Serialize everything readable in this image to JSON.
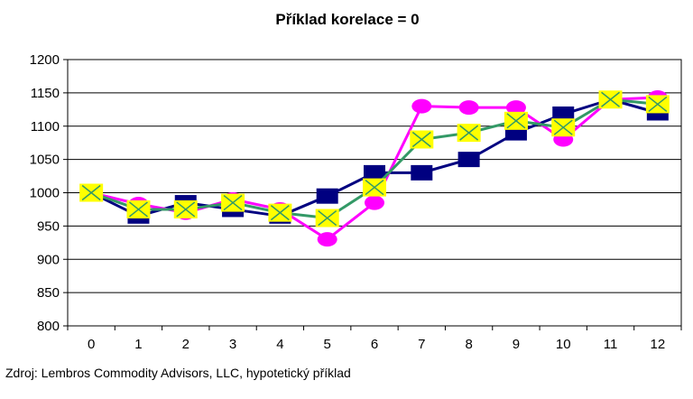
{
  "chart_data": {
    "type": "line",
    "title": "Příklad korelace = 0",
    "xlabel": "",
    "ylabel": "",
    "categories": [
      "0",
      "1",
      "2",
      "3",
      "4",
      "5",
      "6",
      "7",
      "8",
      "9",
      "10",
      "11",
      "12"
    ],
    "ylim": [
      800,
      1200
    ],
    "yticks": [
      800,
      850,
      900,
      950,
      1000,
      1050,
      1100,
      1150,
      1200
    ],
    "grid": true,
    "legend": "none",
    "series": [
      {
        "color": "#000080",
        "marker": "square",
        "values": [
          1000,
          965,
          985,
          975,
          965,
          995,
          1030,
          1030,
          1050,
          1090,
          1118,
          1140,
          1120
        ]
      },
      {
        "color": "#ff00ff",
        "marker": "circle",
        "values": [
          1000,
          983,
          970,
          990,
          975,
          930,
          985,
          1130,
          1128,
          1128,
          1080,
          1140,
          1143
        ]
      },
      {
        "color": "#339966",
        "marker": "x-square",
        "marker_fill": "#ffff00",
        "values": [
          1000,
          975,
          975,
          985,
          970,
          962,
          1008,
          1080,
          1090,
          1108,
          1098,
          1140,
          1133
        ]
      }
    ]
  },
  "source_note": "Zdroj: Lembros Commodity Advisors, LLC, hypotetický příklad"
}
